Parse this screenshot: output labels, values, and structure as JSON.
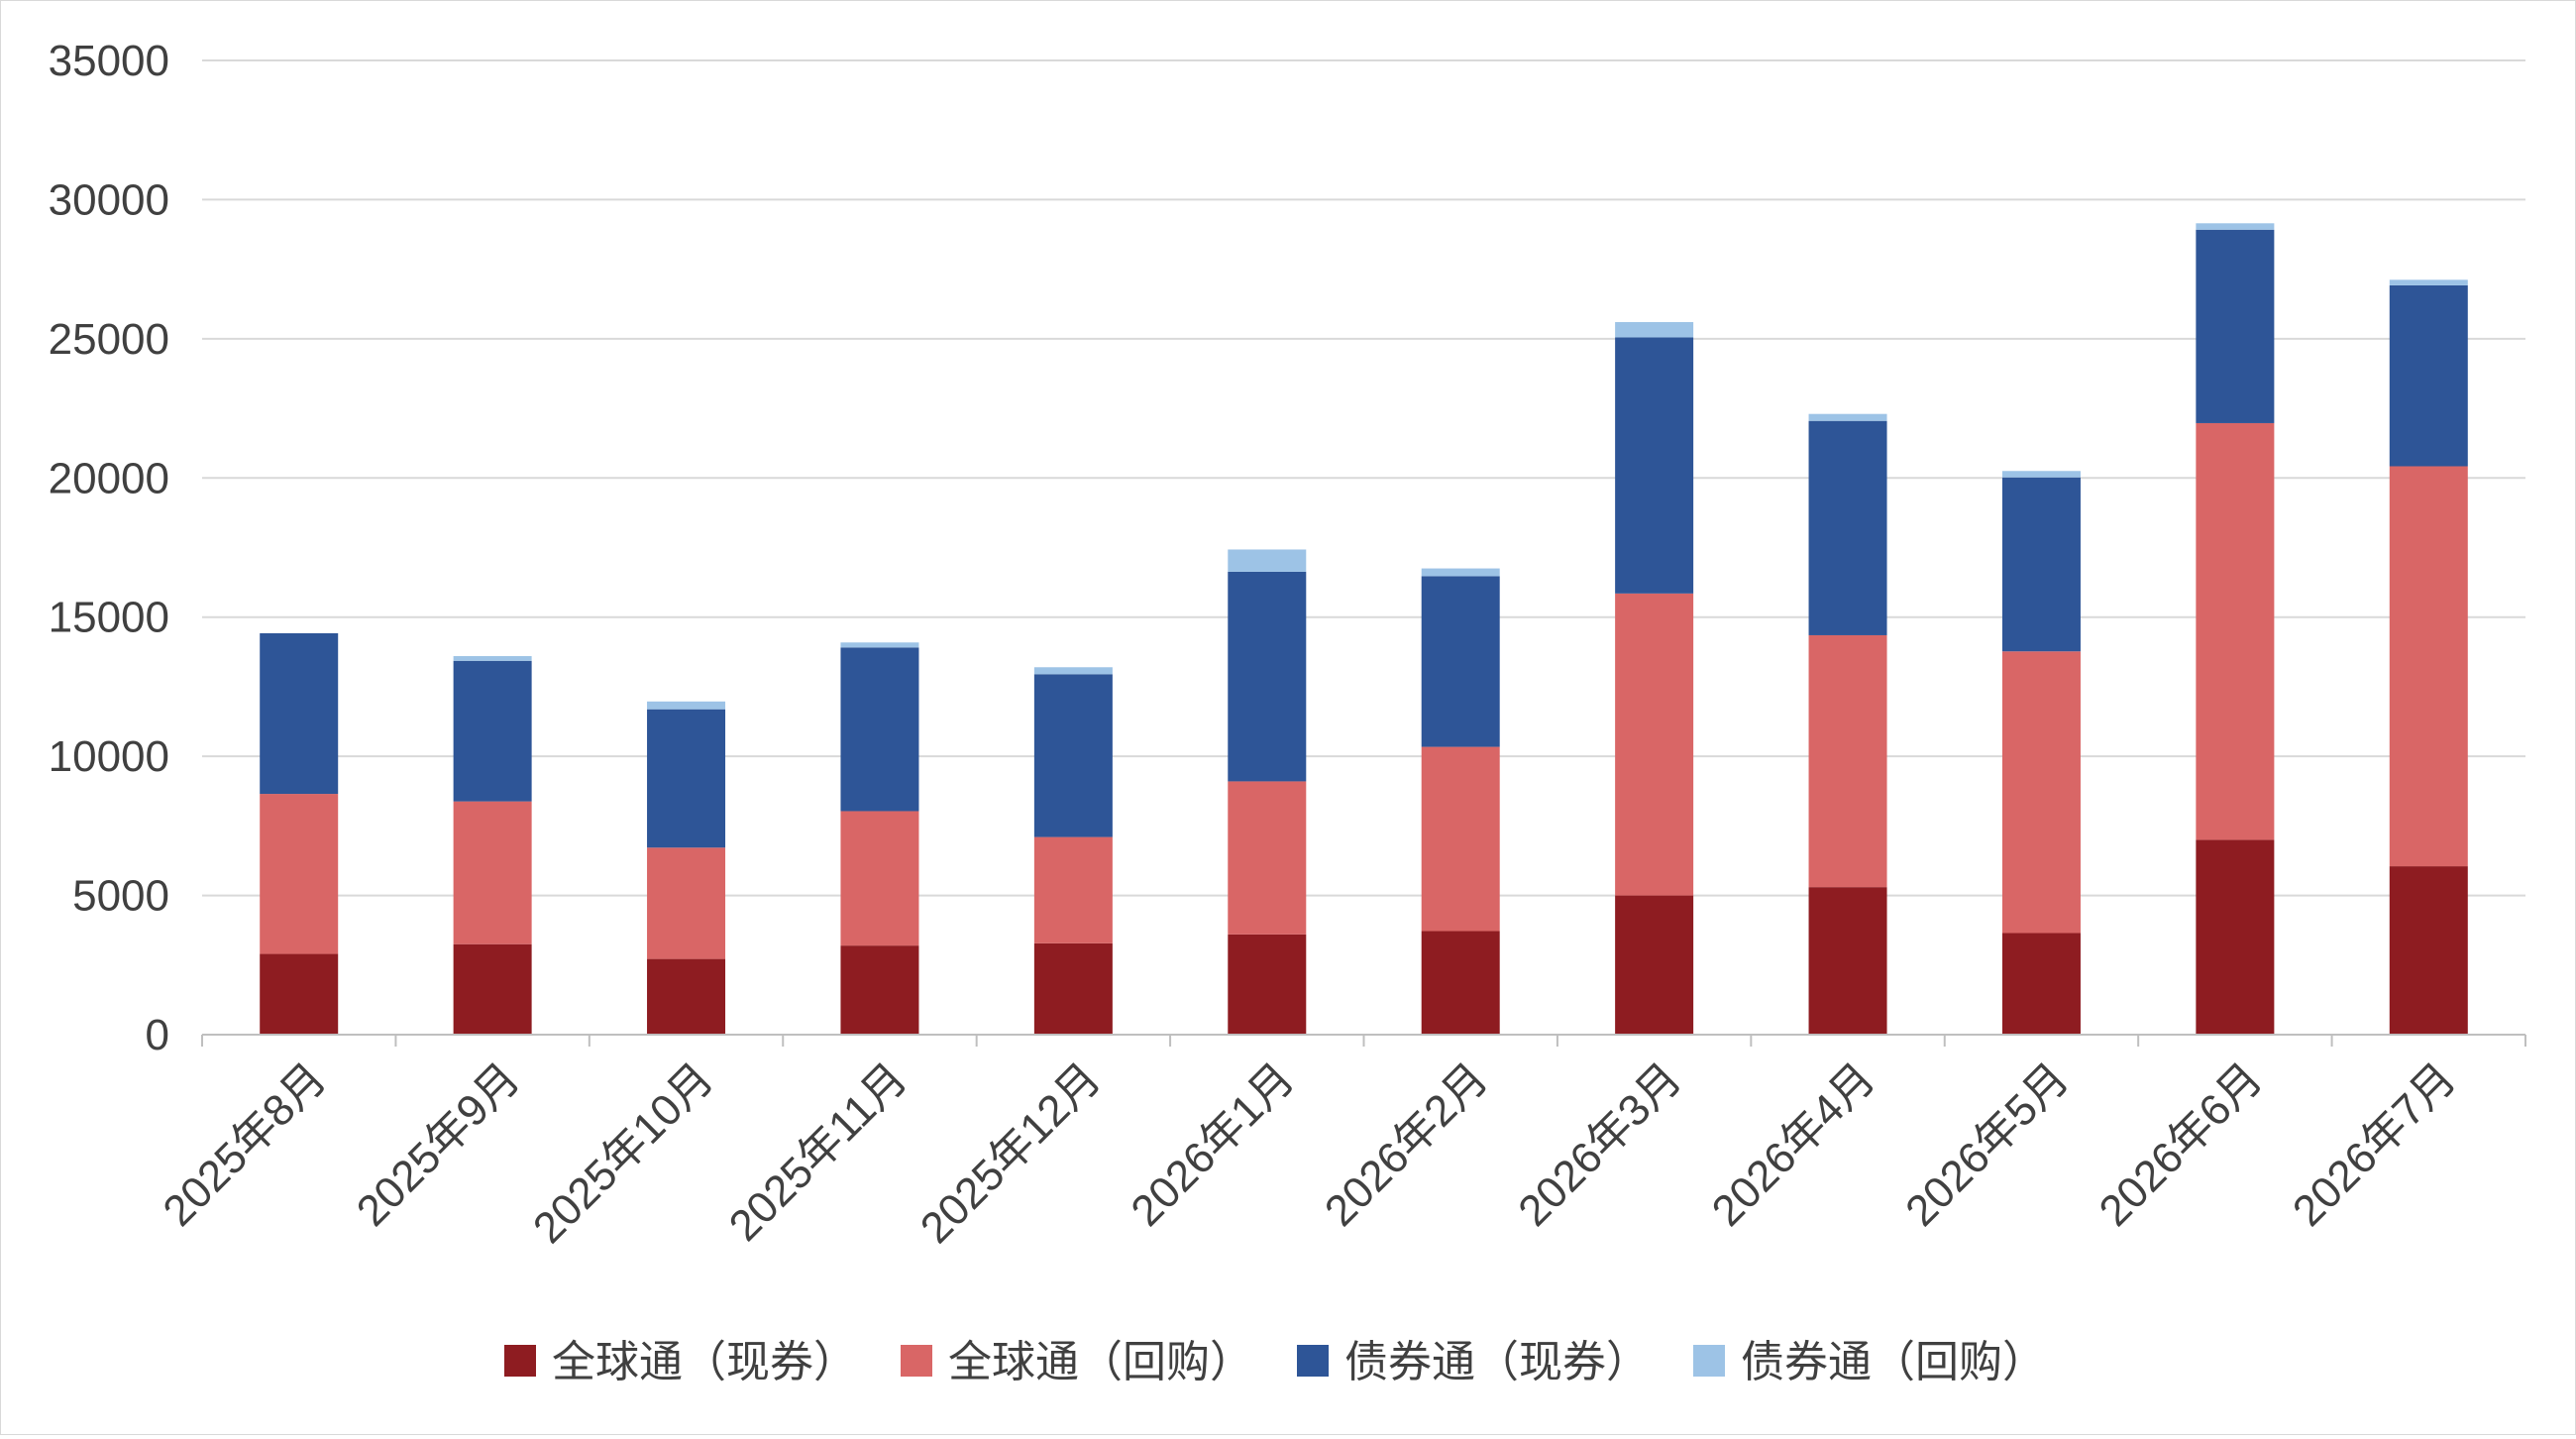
{
  "chart_data": {
    "type": "bar",
    "stacked": true,
    "title": "",
    "xlabel": "",
    "ylabel": "",
    "ylim": [
      0,
      35000
    ],
    "yticks": [
      0,
      5000,
      10000,
      15000,
      20000,
      25000,
      30000,
      35000
    ],
    "grid": "horizontal",
    "legend_position": "bottom",
    "categories": [
      "2025年8月",
      "2025年9月",
      "2025年10月",
      "2025年11月",
      "2025年12月",
      "2026年1月",
      "2026年2月",
      "2026年3月",
      "2026年4月",
      "2026年5月",
      "2026年6月",
      "2026年7月"
    ],
    "series": [
      {
        "name": "全球通（现券）",
        "color": "#8E1C21",
        "values": [
          2900,
          3250,
          2720,
          3200,
          3280,
          3600,
          3720,
          5000,
          5300,
          3650,
          7000,
          6050
        ]
      },
      {
        "name": "全球通（回购）",
        "color": "#D96666",
        "values": [
          5750,
          5130,
          4000,
          4830,
          3820,
          5500,
          6620,
          10850,
          9050,
          10120,
          14970,
          14370
        ]
      },
      {
        "name": "债券通（现券）",
        "color": "#2E5597",
        "values": [
          5770,
          5050,
          4970,
          5880,
          5850,
          7530,
          6130,
          9200,
          7700,
          6250,
          6950,
          6500
        ]
      },
      {
        "name": "债券通（回购）",
        "color": "#9DC3E6",
        "values": [
          0,
          170,
          280,
          180,
          250,
          800,
          280,
          550,
          250,
          230,
          230,
          200
        ]
      }
    ]
  }
}
